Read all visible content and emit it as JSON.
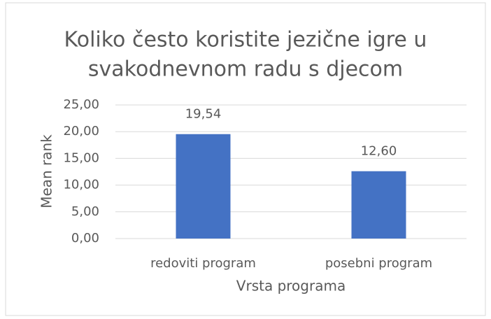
{
  "chart_data": {
    "type": "bar",
    "title": [
      "Koliko često koristite jezične igre u",
      "svakodnevnom radu s djecom"
    ],
    "x_label": "Vrsta programa",
    "y_label": "Mean rank",
    "categories": [
      "redoviti program",
      "posebni program"
    ],
    "values": [
      19.54,
      12.6
    ],
    "value_labels": [
      "19,54",
      "12,60"
    ],
    "color": "#4472c4",
    "ylim": [
      0,
      25
    ],
    "yticks": [
      {
        "value": 0,
        "label": "0,00"
      },
      {
        "value": 5,
        "label": "5,00"
      },
      {
        "value": 10,
        "label": "10,00"
      },
      {
        "value": 15,
        "label": "15,00"
      },
      {
        "value": 20,
        "label": "20,00"
      },
      {
        "value": 25,
        "label": "25,00"
      }
    ],
    "grid": true
  }
}
